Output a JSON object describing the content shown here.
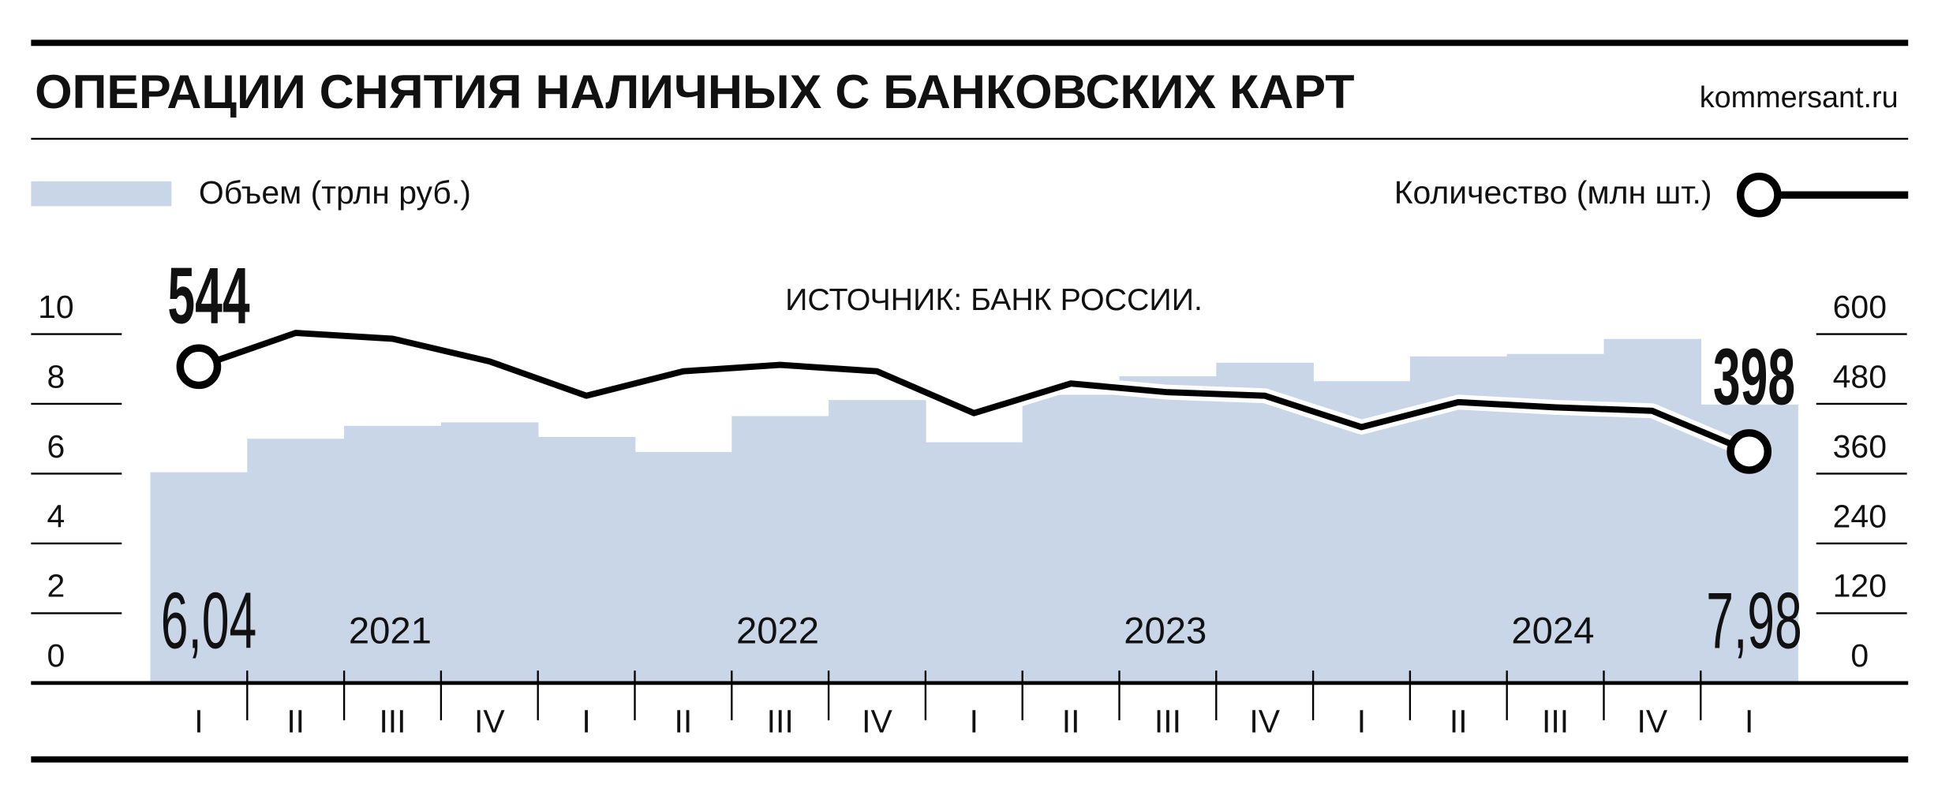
{
  "chart_data": {
    "type": "bar-line",
    "title": "ОПЕРАЦИИ СНЯТИЯ НАЛИЧНЫХ С БАНКОВСКИХ КАРТ",
    "source_site": "kommersant.ru",
    "annotation": "ИСТОЧНИК: БАНК РОССИИ.",
    "categories": [
      "I",
      "II",
      "III",
      "IV",
      "I",
      "II",
      "III",
      "IV",
      "I",
      "II",
      "III",
      "IV",
      "I",
      "II",
      "III",
      "IV",
      "I"
    ],
    "years": [
      "2021",
      "2022",
      "2023",
      "2024"
    ],
    "series": [
      {
        "name": "Объем (трлн руб.)",
        "type": "bar",
        "color": "#c8d6e8",
        "values": [
          6.04,
          7.0,
          7.37,
          7.47,
          7.05,
          6.62,
          7.65,
          8.11,
          6.9,
          8.26,
          8.79,
          9.18,
          8.65,
          9.36,
          9.43,
          9.86,
          7.98
        ],
        "value_labels": [
          "6,04",
          null,
          null,
          null,
          null,
          null,
          null,
          null,
          null,
          null,
          null,
          null,
          null,
          null,
          null,
          null,
          "7,98"
        ]
      },
      {
        "name": "Количество (млн шт.)",
        "type": "line",
        "axis": "y2",
        "color": "#000000",
        "values": [
          544,
          602,
          592,
          553,
          494,
          536,
          547,
          536,
          464,
          515,
          500,
          494,
          440,
          483,
          474,
          468,
          398
        ],
        "value_labels": [
          "544",
          null,
          null,
          null,
          null,
          null,
          null,
          null,
          null,
          null,
          null,
          null,
          null,
          null,
          null,
          null,
          "398"
        ]
      }
    ],
    "ylim": [
      0,
      10
    ],
    "yticks": [
      0,
      2,
      4,
      6,
      8,
      10
    ],
    "y2lim": [
      0,
      600
    ],
    "y2ticks": [
      0,
      120,
      240,
      360,
      480,
      600
    ]
  }
}
